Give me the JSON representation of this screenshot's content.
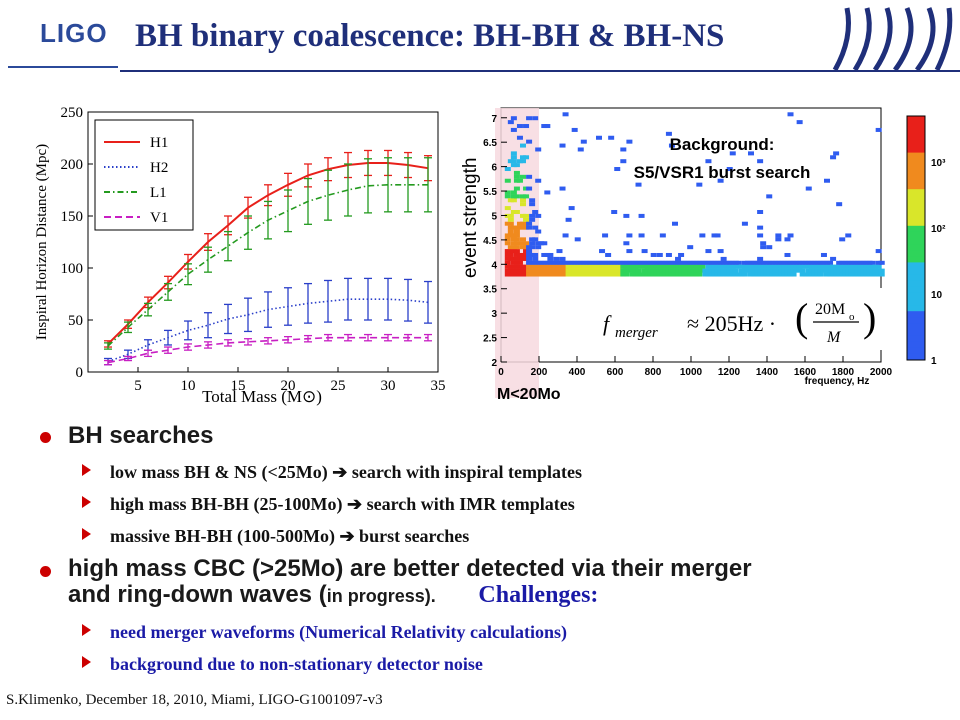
{
  "header": {
    "logo": "LIGO",
    "title": "BH binary coalescence: BH-BH & BH-NS"
  },
  "colors": {
    "H1": "#e8201a",
    "H2": "#2a3fc9",
    "L1": "#249a1f",
    "V1": "#c81fc3",
    "title_blue": "#1f2f7a",
    "bullet_red": "#cc0000",
    "callout_blue": "#1a1aa6"
  },
  "chart_data": [
    {
      "type": "line",
      "title": "",
      "xlabel": "Total Mass (M⊙)",
      "ylabel": "Inspiral Horizon Distance (Mpc)",
      "xlim": [
        0,
        35
      ],
      "ylim": [
        0,
        250
      ],
      "xticks": [
        5,
        10,
        15,
        20,
        25,
        30,
        35
      ],
      "yticks": [
        0,
        50,
        100,
        150,
        200,
        250
      ],
      "legend_position": "top-left",
      "grid": false,
      "series": [
        {
          "name": "H1",
          "style": "solid",
          "x": [
            2,
            4,
            6,
            8,
            10,
            12,
            14,
            16,
            18,
            20,
            22,
            24,
            26,
            28,
            30,
            32,
            34
          ],
          "y": [
            27,
            46,
            67,
            86,
            106,
            125,
            141,
            158,
            170,
            180,
            189,
            195,
            199,
            201,
            201,
            199,
            196
          ],
          "err": [
            3,
            4,
            5,
            6,
            7,
            8,
            9,
            10,
            10,
            11,
            11,
            11,
            12,
            12,
            12,
            12,
            12
          ]
        },
        {
          "name": "H2",
          "style": "dotted",
          "x": [
            2,
            4,
            6,
            8,
            10,
            12,
            14,
            16,
            18,
            20,
            22,
            24,
            26,
            28,
            30,
            32,
            34
          ],
          "y": [
            10,
            17,
            26,
            33,
            40,
            45,
            51,
            55,
            60,
            63,
            66,
            68,
            70,
            70,
            70,
            69,
            67
          ],
          "err": [
            3,
            4,
            5,
            7,
            9,
            12,
            14,
            16,
            17,
            18,
            19,
            20,
            20,
            20,
            20,
            20,
            20
          ]
        },
        {
          "name": "L1",
          "style": "dashdot",
          "x": [
            2,
            4,
            6,
            8,
            10,
            12,
            14,
            16,
            18,
            20,
            22,
            24,
            26,
            28,
            30,
            32,
            34
          ],
          "y": [
            25,
            43,
            60,
            77,
            94,
            108,
            121,
            134,
            146,
            155,
            164,
            170,
            175,
            179,
            180,
            180,
            180
          ],
          "err": [
            3,
            5,
            6,
            8,
            10,
            12,
            14,
            16,
            18,
            20,
            22,
            24,
            25,
            26,
            26,
            26,
            26
          ]
        },
        {
          "name": "V1",
          "style": "dashed",
          "x": [
            2,
            4,
            6,
            8,
            10,
            12,
            14,
            16,
            18,
            20,
            22,
            24,
            26,
            28,
            30,
            32,
            34
          ],
          "y": [
            9,
            13,
            18,
            21,
            24,
            26,
            28,
            29,
            30,
            31,
            32,
            33,
            33,
            33,
            33,
            33,
            33
          ],
          "err": [
            2,
            2,
            3,
            3,
            3,
            3,
            3,
            3,
            3,
            3,
            3,
            3,
            3,
            3,
            3,
            3,
            3
          ]
        }
      ]
    },
    {
      "type": "heatmap",
      "title": "Background:\nS5/VSR1 burst search",
      "xlabel": "frequency, Hz",
      "ylabel": "event strength",
      "xlim": [
        0,
        2000
      ],
      "ylim": [
        2,
        7.2
      ],
      "xticks": [
        0,
        200,
        400,
        600,
        800,
        1000,
        1200,
        1400,
        1600,
        1800,
        2000
      ],
      "yticks": [
        2,
        2.5,
        3,
        3.5,
        4,
        4.5,
        5,
        5.5,
        6,
        6.5,
        7
      ],
      "colorbar_ticks": [
        "1",
        "10",
        "10²",
        "10³"
      ],
      "colorbar_range": [
        1,
        5000
      ],
      "colorbar_scale": "log",
      "highlight_band": {
        "x": [
          0,
          200
        ],
        "label": "M<20Mo"
      },
      "annotation": "f_merger ≈ 205Hz · (20M_o / M)"
    }
  ],
  "bullets": [
    {
      "text": "BH searches",
      "sub": [
        "low mass BH & NS (<25Mo) ➔ search with inspiral templates",
        "high mass BH-BH (25-100Mo) ➔ search with IMR templates",
        "massive BH-BH (100-500Mo) ➔ burst searches"
      ]
    },
    {
      "text_line1": "high mass CBC (>25Mo) are better detected via their merger",
      "text_line2": "and ring-down waves (",
      "in_progress": "in progress).",
      "challenges": "Challenges:",
      "sub": [
        "need merger waveforms (Numerical Relativity calculations)",
        "background due to non-stationary detector noise"
      ]
    }
  ],
  "footer": "S.Klimenko, December 18, 2010, Miami, LIGO-G1001097-v3"
}
